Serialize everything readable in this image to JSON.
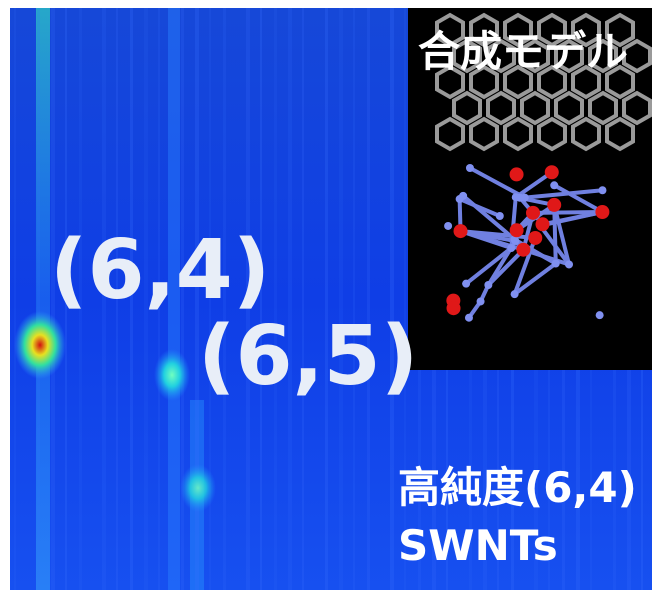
{
  "inset": {
    "title": "合成モデル"
  },
  "spots": [
    {
      "label": "(6,4)"
    },
    {
      "label": "(6,5)"
    }
  ],
  "caption": {
    "line1": "高純度(6,4)",
    "line2": "SWNTs"
  }
}
